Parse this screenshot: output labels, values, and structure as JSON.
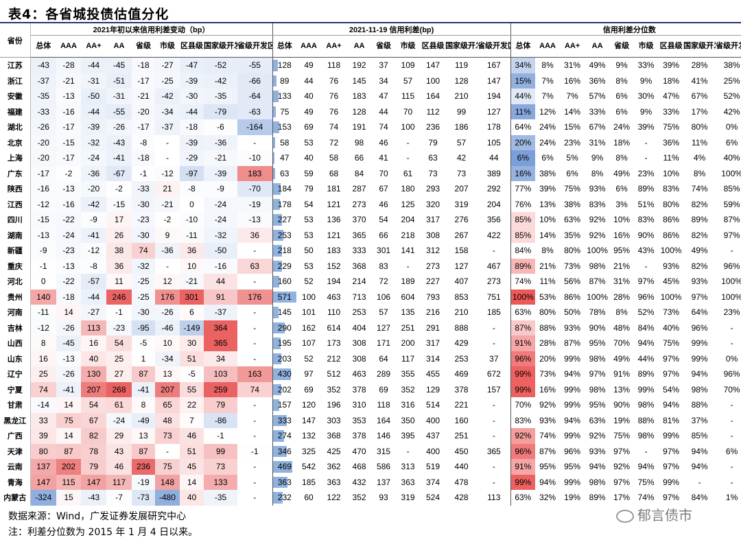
{
  "title": "表4：各省城投债估值分化",
  "group_headers": {
    "g1": "2021年初以来信用利差变动（bp）",
    "g2": "2021-11-19 信用利差(bp)",
    "g3": "信用利差分位数"
  },
  "province_header": "省份",
  "sub_headers": [
    "总体",
    "AAA",
    "AA+",
    "AA",
    "省级",
    "市级",
    "区县级",
    "国家级开发区",
    "省级开发区"
  ],
  "rows": [
    {
      "p": "江苏",
      "c": [
        "-43",
        "-28",
        "-44",
        "-45",
        "-18",
        "-27",
        "-47",
        "-52",
        "-55"
      ],
      "s": [
        "128",
        "49",
        "118",
        "192",
        "37",
        "109",
        "147",
        "119",
        "167"
      ],
      "q": [
        "34%",
        "8%",
        "31%",
        "49%",
        "9%",
        "33%",
        "39%",
        "28%",
        "38%"
      ]
    },
    {
      "p": "浙江",
      "c": [
        "-37",
        "-21",
        "-31",
        "-51",
        "-17",
        "-25",
        "-39",
        "-42",
        "-66"
      ],
      "s": [
        "89",
        "44",
        "76",
        "145",
        "34",
        "57",
        "100",
        "128",
        "147"
      ],
      "q": [
        "15%",
        "7%",
        "16%",
        "36%",
        "8%",
        "9%",
        "18%",
        "41%",
        "25%"
      ]
    },
    {
      "p": "安徽",
      "c": [
        "-35",
        "-13",
        "-50",
        "-31",
        "-21",
        "-42",
        "-30",
        "-35",
        "-64"
      ],
      "s": [
        "133",
        "40",
        "76",
        "183",
        "47",
        "115",
        "164",
        "210",
        "194"
      ],
      "q": [
        "44%",
        "7%",
        "7%",
        "57%",
        "6%",
        "30%",
        "47%",
        "67%",
        "52%"
      ]
    },
    {
      "p": "福建",
      "c": [
        "-33",
        "-16",
        "-44",
        "-55",
        "-20",
        "-34",
        "-44",
        "-79",
        "-63"
      ],
      "s": [
        "75",
        "49",
        "76",
        "128",
        "44",
        "70",
        "112",
        "99",
        "127"
      ],
      "q": [
        "11%",
        "12%",
        "14%",
        "33%",
        "6%",
        "9%",
        "33%",
        "17%",
        "42%"
      ]
    },
    {
      "p": "湖北",
      "c": [
        "-26",
        "-17",
        "-39",
        "-26",
        "-17",
        "-37",
        "-18",
        "-6",
        "-164"
      ],
      "s": [
        "153",
        "69",
        "74",
        "191",
        "74",
        "100",
        "236",
        "186",
        "178"
      ],
      "q": [
        "64%",
        "24%",
        "15%",
        "67%",
        "24%",
        "39%",
        "75%",
        "80%",
        "0%"
      ]
    },
    {
      "p": "北京",
      "c": [
        "-20",
        "-15",
        "-32",
        "-43",
        "-8",
        "-",
        "-39",
        "-36",
        "-"
      ],
      "s": [
        "58",
        "53",
        "72",
        "98",
        "46",
        "-",
        "79",
        "57",
        "105"
      ],
      "q": [
        "20%",
        "24%",
        "23%",
        "31%",
        "18%",
        "-",
        "36%",
        "11%",
        "6%"
      ]
    },
    {
      "p": "上海",
      "c": [
        "-20",
        "-17",
        "-24",
        "-41",
        "-18",
        "-",
        "-29",
        "-21",
        "-10"
      ],
      "s": [
        "47",
        "40",
        "58",
        "66",
        "41",
        "-",
        "63",
        "42",
        "44"
      ],
      "q": [
        "6%",
        "6%",
        "5%",
        "9%",
        "8%",
        "-",
        "11%",
        "4%",
        "40%"
      ]
    },
    {
      "p": "广东",
      "c": [
        "-17",
        "-2",
        "-36",
        "-67",
        "-1",
        "-12",
        "-97",
        "-39",
        "183"
      ],
      "s": [
        "63",
        "59",
        "68",
        "84",
        "70",
        "61",
        "73",
        "73",
        "389"
      ],
      "q": [
        "16%",
        "38%",
        "6%",
        "8%",
        "49%",
        "23%",
        "10%",
        "8%",
        "100%"
      ]
    },
    {
      "p": "陕西",
      "c": [
        "-16",
        "-13",
        "-20",
        "-2",
        "-33",
        "21",
        "-8",
        "-9",
        "-70"
      ],
      "s": [
        "184",
        "79",
        "181",
        "287",
        "67",
        "180",
        "293",
        "207",
        "292"
      ],
      "q": [
        "77%",
        "39%",
        "75%",
        "93%",
        "6%",
        "89%",
        "83%",
        "74%",
        "85%"
      ]
    },
    {
      "p": "江西",
      "c": [
        "-12",
        "-16",
        "-42",
        "-15",
        "-30",
        "-21",
        "0",
        "-24",
        "-19"
      ],
      "s": [
        "178",
        "54",
        "121",
        "273",
        "46",
        "125",
        "320",
        "319",
        "204"
      ],
      "q": [
        "76%",
        "13%",
        "38%",
        "83%",
        "3%",
        "51%",
        "80%",
        "82%",
        "59%"
      ]
    },
    {
      "p": "四川",
      "c": [
        "-15",
        "-22",
        "-9",
        "17",
        "-23",
        "-2",
        "-10",
        "-24",
        "-13"
      ],
      "s": [
        "227",
        "53",
        "136",
        "370",
        "54",
        "204",
        "317",
        "276",
        "356"
      ],
      "q": [
        "85%",
        "10%",
        "63%",
        "92%",
        "10%",
        "83%",
        "86%",
        "89%",
        "87%"
      ]
    },
    {
      "p": "湖南",
      "c": [
        "-13",
        "-24",
        "-41",
        "26",
        "-30",
        "9",
        "-11",
        "-32",
        "36"
      ],
      "s": [
        "253",
        "53",
        "121",
        "365",
        "66",
        "218",
        "308",
        "267",
        "422"
      ],
      "q": [
        "85%",
        "14%",
        "35%",
        "92%",
        "16%",
        "90%",
        "86%",
        "82%",
        "97%"
      ]
    },
    {
      "p": "新疆",
      "c": [
        "-9",
        "-23",
        "-12",
        "38",
        "74",
        "-36",
        "36",
        "-50",
        "-"
      ],
      "s": [
        "218",
        "50",
        "183",
        "333",
        "301",
        "141",
        "312",
        "158",
        "-"
      ],
      "q": [
        "84%",
        "8%",
        "80%",
        "100%",
        "95%",
        "43%",
        "100%",
        "49%",
        "-"
      ]
    },
    {
      "p": "重庆",
      "c": [
        "-1",
        "-13",
        "-8",
        "36",
        "-32",
        "-",
        "10",
        "-16",
        "63"
      ],
      "s": [
        "229",
        "53",
        "152",
        "368",
        "83",
        "-",
        "273",
        "127",
        "467"
      ],
      "q": [
        "89%",
        "21%",
        "73%",
        "98%",
        "21%",
        "-",
        "93%",
        "82%",
        "96%"
      ]
    },
    {
      "p": "河北",
      "c": [
        "0",
        "-22",
        "-57",
        "11",
        "-25",
        "12",
        "-21",
        "44",
        "-"
      ],
      "s": [
        "160",
        "52",
        "194",
        "214",
        "72",
        "189",
        "227",
        "407",
        "273"
      ],
      "q": [
        "74%",
        "11%",
        "56%",
        "87%",
        "31%",
        "97%",
        "45%",
        "93%",
        "100%"
      ]
    },
    {
      "p": "贵州",
      "c": [
        "140",
        "-18",
        "-44",
        "246",
        "-25",
        "176",
        "301",
        "91",
        "176"
      ],
      "s": [
        "571",
        "100",
        "463",
        "713",
        "106",
        "604",
        "793",
        "853",
        "751"
      ],
      "q": [
        "100%",
        "53%",
        "86%",
        "100%",
        "28%",
        "96%",
        "100%",
        "97%",
        "100%"
      ]
    },
    {
      "p": "河南",
      "c": [
        "-11",
        "14",
        "-27",
        "-1",
        "-30",
        "-26",
        "6",
        "-37",
        "-"
      ],
      "s": [
        "145",
        "101",
        "110",
        "253",
        "57",
        "135",
        "216",
        "210",
        "185"
      ],
      "q": [
        "63%",
        "80%",
        "50%",
        "78%",
        "8%",
        "52%",
        "73%",
        "64%",
        "23%"
      ]
    },
    {
      "p": "吉林",
      "c": [
        "-12",
        "-26",
        "113",
        "-23",
        "-95",
        "-46",
        "-149",
        "364",
        "-"
      ],
      "s": [
        "290",
        "162",
        "614",
        "404",
        "127",
        "251",
        "291",
        "888",
        "-"
      ],
      "q": [
        "87%",
        "88%",
        "93%",
        "90%",
        "48%",
        "84%",
        "40%",
        "96%",
        "-"
      ]
    },
    {
      "p": "山西",
      "c": [
        "8",
        "-45",
        "16",
        "54",
        "-5",
        "10",
        "30",
        "365",
        "-"
      ],
      "s": [
        "195",
        "107",
        "173",
        "308",
        "171",
        "200",
        "317",
        "429",
        "-"
      ],
      "q": [
        "91%",
        "28%",
        "87%",
        "95%",
        "70%",
        "94%",
        "75%",
        "99%",
        "-"
      ]
    },
    {
      "p": "山东",
      "c": [
        "16",
        "-13",
        "40",
        "25",
        "1",
        "-34",
        "51",
        "34",
        "-"
      ],
      "s": [
        "203",
        "52",
        "212",
        "308",
        "64",
        "117",
        "314",
        "253",
        "37"
      ],
      "q": [
        "96%",
        "20%",
        "99%",
        "98%",
        "49%",
        "44%",
        "97%",
        "99%",
        "0%"
      ]
    },
    {
      "p": "辽宁",
      "c": [
        "25",
        "-26",
        "130",
        "27",
        "87",
        "13",
        "-5",
        "103",
        "163"
      ],
      "s": [
        "430",
        "97",
        "512",
        "463",
        "289",
        "355",
        "455",
        "469",
        "672"
      ],
      "q": [
        "99%",
        "73%",
        "94%",
        "97%",
        "91%",
        "89%",
        "97%",
        "94%",
        "96%"
      ]
    },
    {
      "p": "宁夏",
      "c": [
        "74",
        "-41",
        "207",
        "268",
        "-41",
        "207",
        "55",
        "259",
        "74"
      ],
      "s": [
        "202",
        "69",
        "352",
        "378",
        "69",
        "352",
        "129",
        "378",
        "157"
      ],
      "q": [
        "99%",
        "16%",
        "99%",
        "98%",
        "13%",
        "99%",
        "54%",
        "98%",
        "70%"
      ]
    },
    {
      "p": "甘肃",
      "c": [
        "-14",
        "14",
        "54",
        "61",
        "8",
        "65",
        "22",
        "79",
        "-"
      ],
      "s": [
        "157",
        "120",
        "196",
        "310",
        "118",
        "316",
        "514",
        "221",
        "-"
      ],
      "q": [
        "70%",
        "92%",
        "99%",
        "95%",
        "90%",
        "98%",
        "94%",
        "88%",
        "-"
      ]
    },
    {
      "p": "黑龙江",
      "c": [
        "33",
        "75",
        "67",
        "-24",
        "-49",
        "48",
        "7",
        "-86",
        "-"
      ],
      "s": [
        "333",
        "147",
        "303",
        "353",
        "164",
        "350",
        "400",
        "160",
        "-"
      ],
      "q": [
        "83%",
        "93%",
        "94%",
        "63%",
        "19%",
        "88%",
        "81%",
        "37%",
        "-"
      ]
    },
    {
      "p": "广西",
      "c": [
        "39",
        "14",
        "82",
        "29",
        "13",
        "73",
        "46",
        "-1",
        "-"
      ],
      "s": [
        "274",
        "132",
        "368",
        "378",
        "146",
        "395",
        "437",
        "251",
        "-"
      ],
      "q": [
        "92%",
        "74%",
        "99%",
        "92%",
        "75%",
        "98%",
        "99%",
        "85%",
        "-"
      ]
    },
    {
      "p": "天津",
      "c": [
        "80",
        "87",
        "78",
        "43",
        "87",
        "-",
        "51",
        "99",
        "-1"
      ],
      "s": [
        "346",
        "325",
        "425",
        "470",
        "315",
        "-",
        "400",
        "450",
        "365"
      ],
      "q": [
        "96%",
        "87%",
        "96%",
        "93%",
        "97%",
        "-",
        "97%",
        "94%",
        "6%"
      ]
    },
    {
      "p": "云南",
      "c": [
        "137",
        "202",
        "79",
        "46",
        "236",
        "75",
        "45",
        "73",
        "-"
      ],
      "s": [
        "469",
        "542",
        "362",
        "468",
        "586",
        "313",
        "519",
        "440",
        "-"
      ],
      "q": [
        "91%",
        "95%",
        "95%",
        "94%",
        "92%",
        "94%",
        "97%",
        "94%",
        "-"
      ]
    },
    {
      "p": "青海",
      "c": [
        "147",
        "115",
        "147",
        "117",
        "-19",
        "148",
        "14",
        "133",
        "-"
      ],
      "s": [
        "363",
        "185",
        "363",
        "432",
        "137",
        "363",
        "374",
        "478",
        "-"
      ],
      "q": [
        "99%",
        "94%",
        "99%",
        "98%",
        "97%",
        "75%",
        "99%",
        "-",
        "-"
      ]
    },
    {
      "p": "内蒙古",
      "c": [
        "-324",
        "15",
        "-43",
        "-7",
        "-73",
        "-480",
        "40",
        "-35",
        "-"
      ],
      "s": [
        "232",
        "60",
        "122",
        "352",
        "93",
        "319",
        "524",
        "428",
        "113"
      ],
      "q": [
        "63%",
        "32%",
        "19%",
        "89%",
        "17%",
        "74%",
        "97%",
        "84%",
        "1%"
      ]
    }
  ],
  "footer": {
    "source": "数据来源：Wind，广发证券发展研究中心",
    "note": "注：利差分位数为 2015 年 1 月 4 日以来。"
  },
  "watermark": "郁言债市"
}
